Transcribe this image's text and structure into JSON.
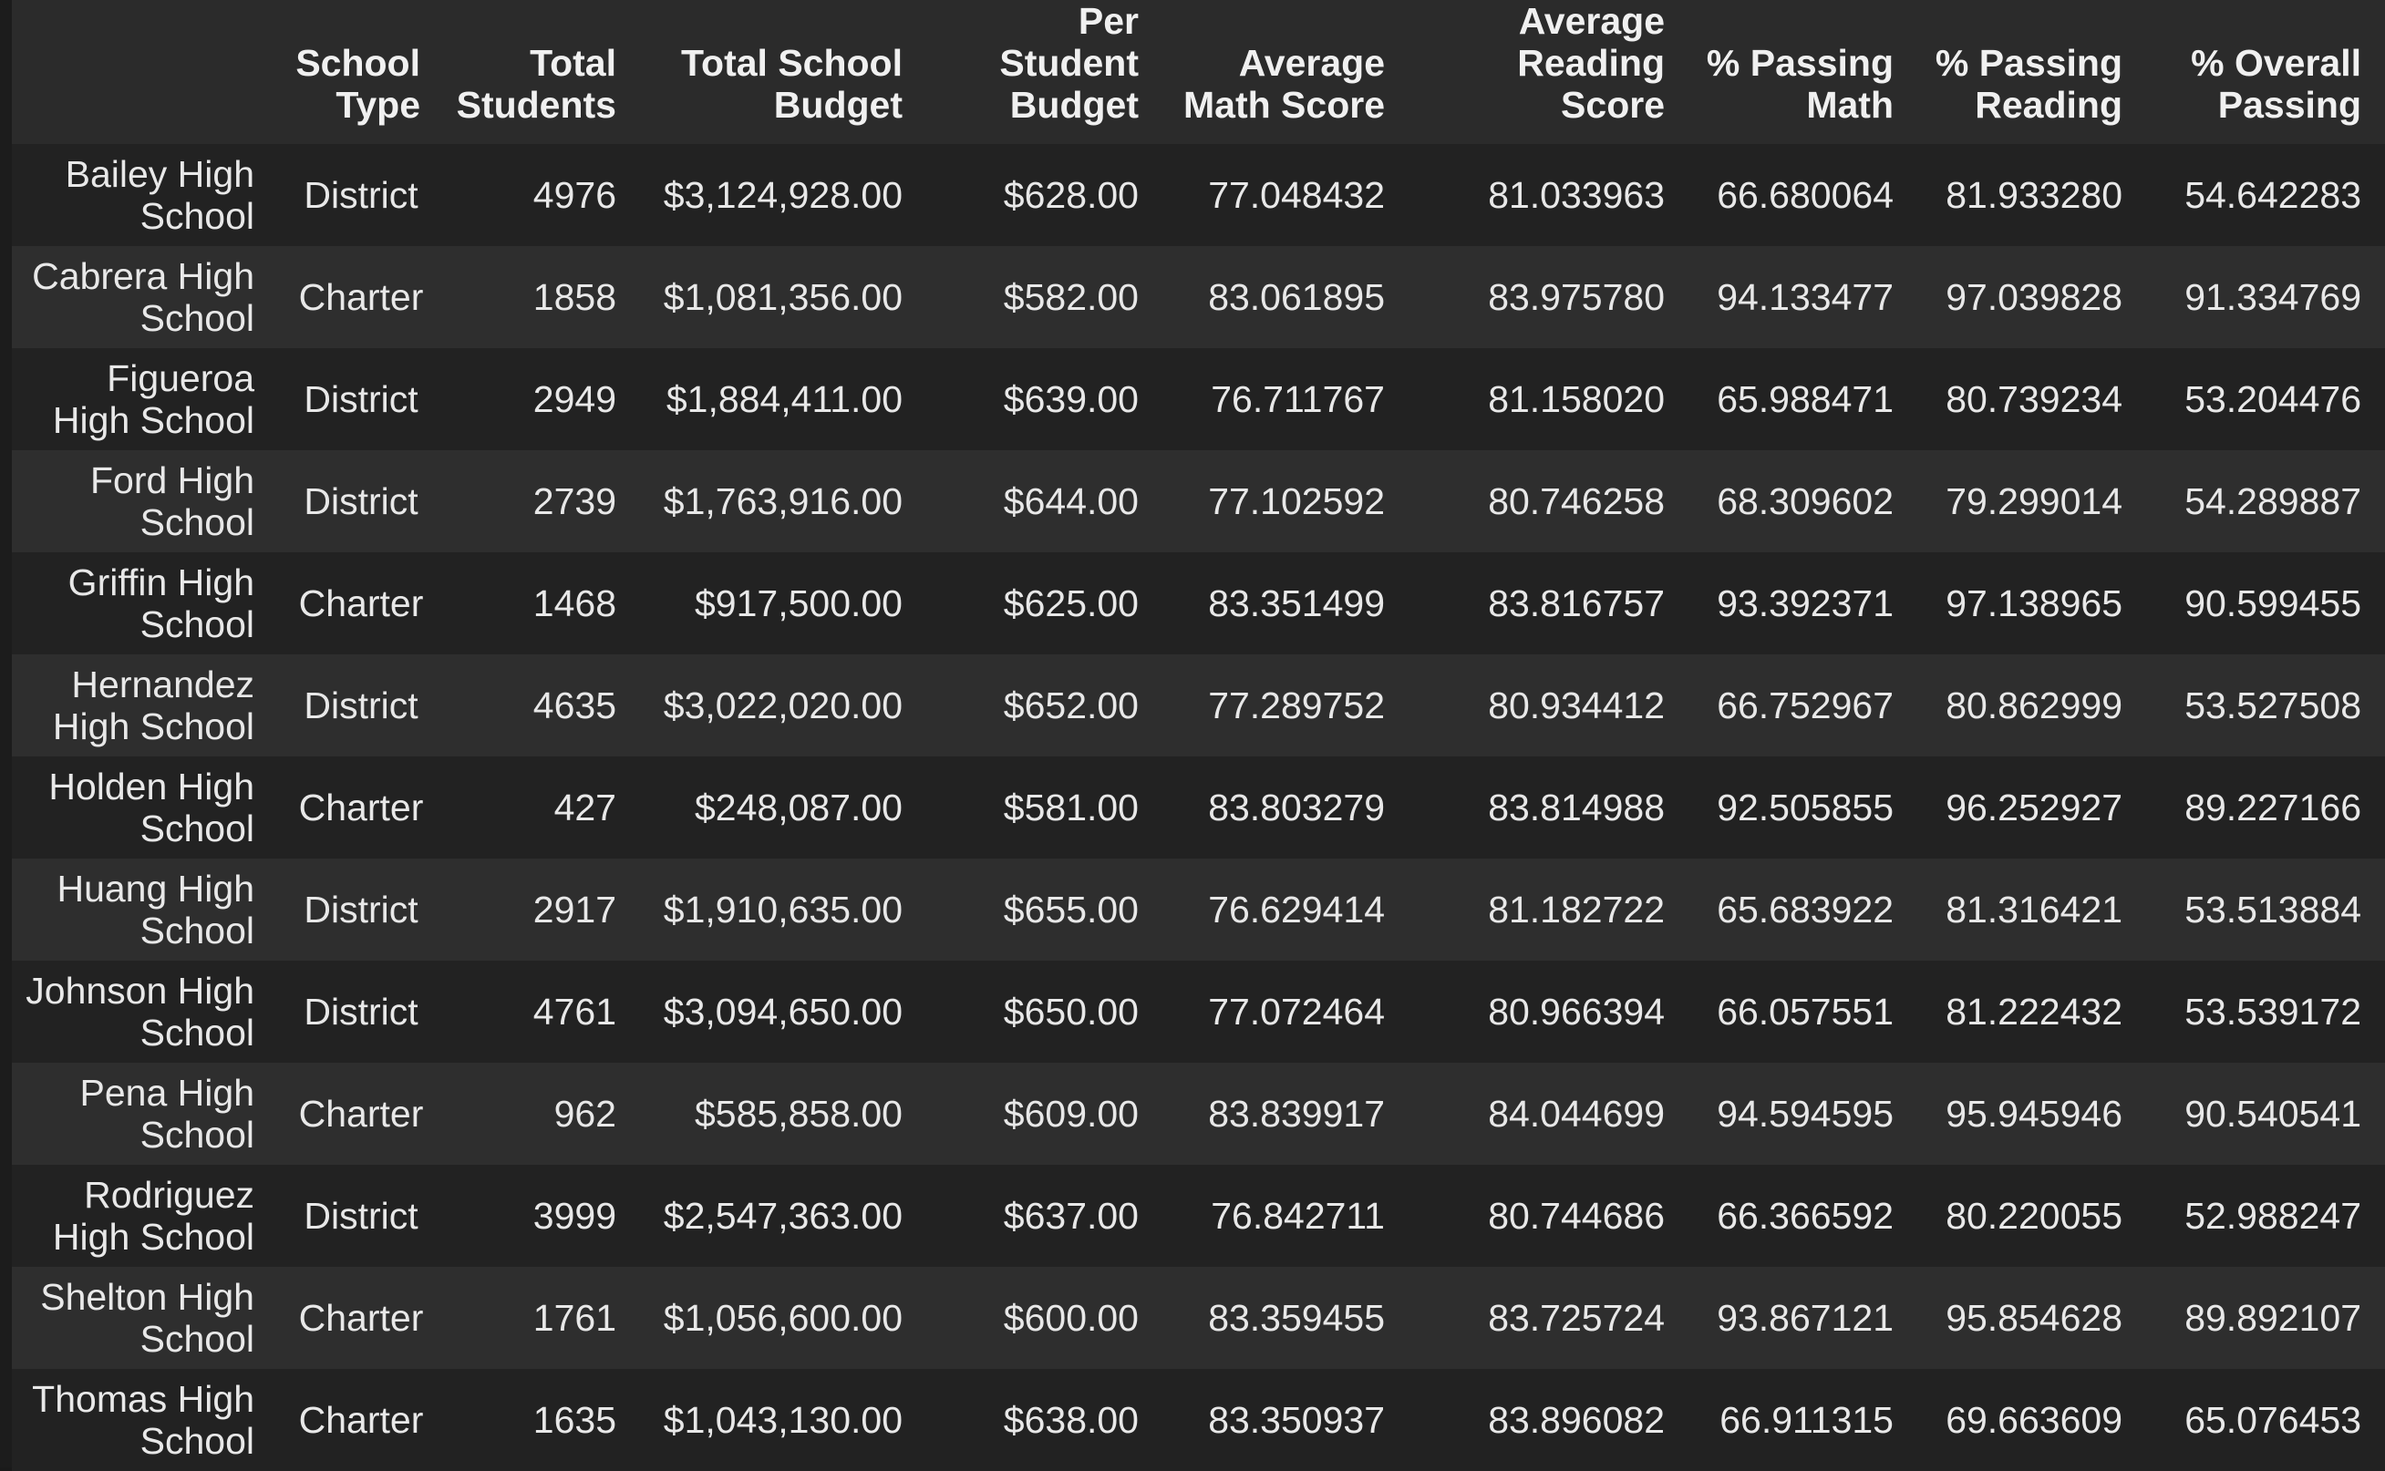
{
  "table": {
    "columns": [
      {
        "label": ""
      },
      {
        "label": "School Type",
        "lines": [
          "School",
          "Type"
        ]
      },
      {
        "label": "Total Students",
        "lines": [
          "Total",
          "Students"
        ]
      },
      {
        "label": "Total School Budget",
        "lines": [
          "Total School",
          "Budget"
        ]
      },
      {
        "label": "Per Student Budget",
        "lines": [
          "Per",
          "Student",
          "Budget"
        ]
      },
      {
        "label": "Average Math Score",
        "lines": [
          "Average",
          "Math Score"
        ]
      },
      {
        "label": "Average Reading Score",
        "lines": [
          "Average",
          "Reading",
          "Score"
        ]
      },
      {
        "label": "% Passing Math",
        "lines": [
          "% Passing",
          "Math"
        ]
      },
      {
        "label": "% Passing Reading",
        "lines": [
          "% Passing",
          "Reading"
        ]
      },
      {
        "label": "% Overall Passing",
        "lines": [
          "% Overall",
          "Passing"
        ]
      }
    ],
    "rows": [
      {
        "name": "Bailey High School",
        "type": "District",
        "students": "4976",
        "budget": "$3,124,928.00",
        "per_student": "$628.00",
        "avg_math": "77.048432",
        "avg_reading": "81.033963",
        "pass_math": "66.680064",
        "pass_reading": "81.933280",
        "overall": "54.642283"
      },
      {
        "name": "Cabrera High School",
        "type": "Charter",
        "students": "1858",
        "budget": "$1,081,356.00",
        "per_student": "$582.00",
        "avg_math": "83.061895",
        "avg_reading": "83.975780",
        "pass_math": "94.133477",
        "pass_reading": "97.039828",
        "overall": "91.334769"
      },
      {
        "name": "Figueroa High School",
        "type": "District",
        "students": "2949",
        "budget": "$1,884,411.00",
        "per_student": "$639.00",
        "avg_math": "76.711767",
        "avg_reading": "81.158020",
        "pass_math": "65.988471",
        "pass_reading": "80.739234",
        "overall": "53.204476"
      },
      {
        "name": "Ford High School",
        "type": "District",
        "students": "2739",
        "budget": "$1,763,916.00",
        "per_student": "$644.00",
        "avg_math": "77.102592",
        "avg_reading": "80.746258",
        "pass_math": "68.309602",
        "pass_reading": "79.299014",
        "overall": "54.289887"
      },
      {
        "name": "Griffin High School",
        "type": "Charter",
        "students": "1468",
        "budget": "$917,500.00",
        "per_student": "$625.00",
        "avg_math": "83.351499",
        "avg_reading": "83.816757",
        "pass_math": "93.392371",
        "pass_reading": "97.138965",
        "overall": "90.599455"
      },
      {
        "name": "Hernandez High School",
        "type": "District",
        "students": "4635",
        "budget": "$3,022,020.00",
        "per_student": "$652.00",
        "avg_math": "77.289752",
        "avg_reading": "80.934412",
        "pass_math": "66.752967",
        "pass_reading": "80.862999",
        "overall": "53.527508"
      },
      {
        "name": "Holden High School",
        "type": "Charter",
        "students": "427",
        "budget": "$248,087.00",
        "per_student": "$581.00",
        "avg_math": "83.803279",
        "avg_reading": "83.814988",
        "pass_math": "92.505855",
        "pass_reading": "96.252927",
        "overall": "89.227166"
      },
      {
        "name": "Huang High School",
        "type": "District",
        "students": "2917",
        "budget": "$1,910,635.00",
        "per_student": "$655.00",
        "avg_math": "76.629414",
        "avg_reading": "81.182722",
        "pass_math": "65.683922",
        "pass_reading": "81.316421",
        "overall": "53.513884"
      },
      {
        "name": "Johnson High School",
        "type": "District",
        "students": "4761",
        "budget": "$3,094,650.00",
        "per_student": "$650.00",
        "avg_math": "77.072464",
        "avg_reading": "80.966394",
        "pass_math": "66.057551",
        "pass_reading": "81.222432",
        "overall": "53.539172"
      },
      {
        "name": "Pena High School",
        "type": "Charter",
        "students": "962",
        "budget": "$585,858.00",
        "per_student": "$609.00",
        "avg_math": "83.839917",
        "avg_reading": "84.044699",
        "pass_math": "94.594595",
        "pass_reading": "95.945946",
        "overall": "90.540541"
      },
      {
        "name": "Rodriguez High School",
        "type": "District",
        "students": "3999",
        "budget": "$2,547,363.00",
        "per_student": "$637.00",
        "avg_math": "76.842711",
        "avg_reading": "80.744686",
        "pass_math": "66.366592",
        "pass_reading": "80.220055",
        "overall": "52.988247"
      },
      {
        "name": "Shelton High School",
        "type": "Charter",
        "students": "1761",
        "budget": "$1,056,600.00",
        "per_student": "$600.00",
        "avg_math": "83.359455",
        "avg_reading": "83.725724",
        "pass_math": "93.867121",
        "pass_reading": "95.854628",
        "overall": "89.892107"
      },
      {
        "name": "Thomas High School",
        "type": "Charter",
        "students": "1635",
        "budget": "$1,043,130.00",
        "per_student": "$638.00",
        "avg_math": "83.350937",
        "avg_reading": "83.896082",
        "pass_math": "66.911315",
        "pass_reading": "69.663609",
        "overall": "65.076453"
      }
    ]
  }
}
